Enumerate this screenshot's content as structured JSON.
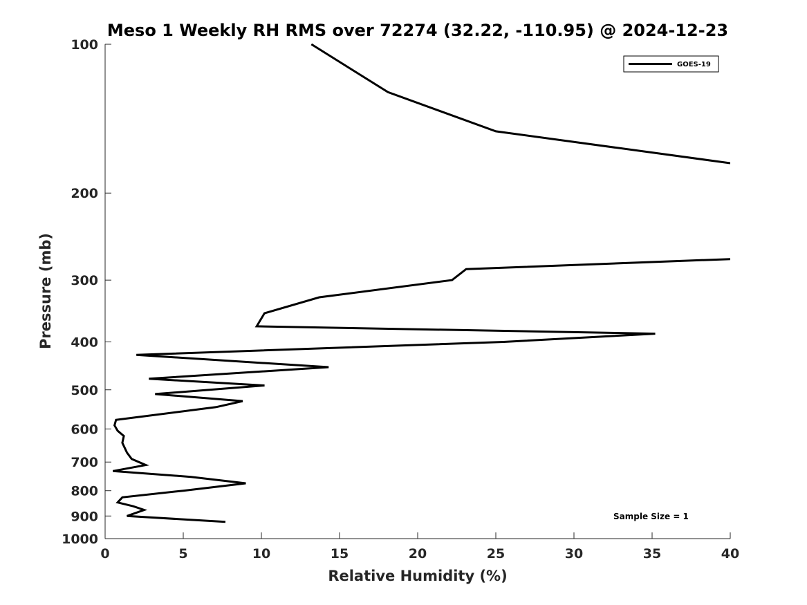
{
  "chart_data": {
    "type": "line",
    "title": "Meso 1 Weekly RH RMS over 72274 (32.22, -110.95) @ 2024-12-23",
    "xlabel": "Relative Humidity (%)",
    "ylabel": "Pressure (mb)",
    "xlim": [
      0,
      40
    ],
    "ylim": [
      1000,
      100
    ],
    "y_scale": "log",
    "y_reversed": true,
    "grid": false,
    "legend_position": "top-right",
    "x_ticks": [
      0,
      5,
      10,
      15,
      20,
      25,
      30,
      35,
      40
    ],
    "x_tick_labels": [
      "0",
      "5",
      "10",
      "15",
      "20",
      "25",
      "30",
      "35",
      "40"
    ],
    "y_ticks": [
      100,
      200,
      300,
      400,
      500,
      600,
      700,
      800,
      900,
      1000
    ],
    "y_tick_labels": [
      "100",
      "200",
      "300",
      "400",
      "500",
      "600",
      "700",
      "800",
      "900",
      "1000"
    ],
    "annotation": "Sample Size = 1",
    "series": [
      {
        "name": "GOES-19",
        "color": "#000000",
        "segments": [
          [
            {
              "x": 13.2,
              "y": 100
            },
            {
              "x": 18.1,
              "y": 125
            },
            {
              "x": 25.0,
              "y": 150
            },
            {
              "x": 40.0,
              "y": 174
            }
          ],
          [
            {
              "x": 40.0,
              "y": 272
            },
            {
              "x": 23.1,
              "y": 285
            },
            {
              "x": 22.2,
              "y": 300
            },
            {
              "x": 13.7,
              "y": 325
            },
            {
              "x": 10.2,
              "y": 350
            },
            {
              "x": 9.7,
              "y": 372
            },
            {
              "x": 35.2,
              "y": 385
            },
            {
              "x": 25.5,
              "y": 400
            },
            {
              "x": 2.0,
              "y": 425
            },
            {
              "x": 14.3,
              "y": 450
            },
            {
              "x": 2.8,
              "y": 475
            },
            {
              "x": 10.2,
              "y": 490
            },
            {
              "x": 3.2,
              "y": 510
            },
            {
              "x": 8.8,
              "y": 527
            },
            {
              "x": 7.1,
              "y": 542
            },
            {
              "x": 0.7,
              "y": 575
            },
            {
              "x": 0.6,
              "y": 590
            },
            {
              "x": 0.8,
              "y": 605
            },
            {
              "x": 1.2,
              "y": 620
            },
            {
              "x": 1.1,
              "y": 640
            },
            {
              "x": 1.4,
              "y": 670
            },
            {
              "x": 1.7,
              "y": 690
            },
            {
              "x": 2.6,
              "y": 710
            },
            {
              "x": 0.5,
              "y": 730
            },
            {
              "x": 5.5,
              "y": 750
            },
            {
              "x": 9.0,
              "y": 773
            },
            {
              "x": 5.0,
              "y": 800
            },
            {
              "x": 1.1,
              "y": 825
            },
            {
              "x": 0.8,
              "y": 845
            },
            {
              "x": 1.8,
              "y": 860
            },
            {
              "x": 2.5,
              "y": 875
            },
            {
              "x": 1.4,
              "y": 900
            },
            {
              "x": 7.7,
              "y": 925
            }
          ]
        ]
      }
    ]
  }
}
